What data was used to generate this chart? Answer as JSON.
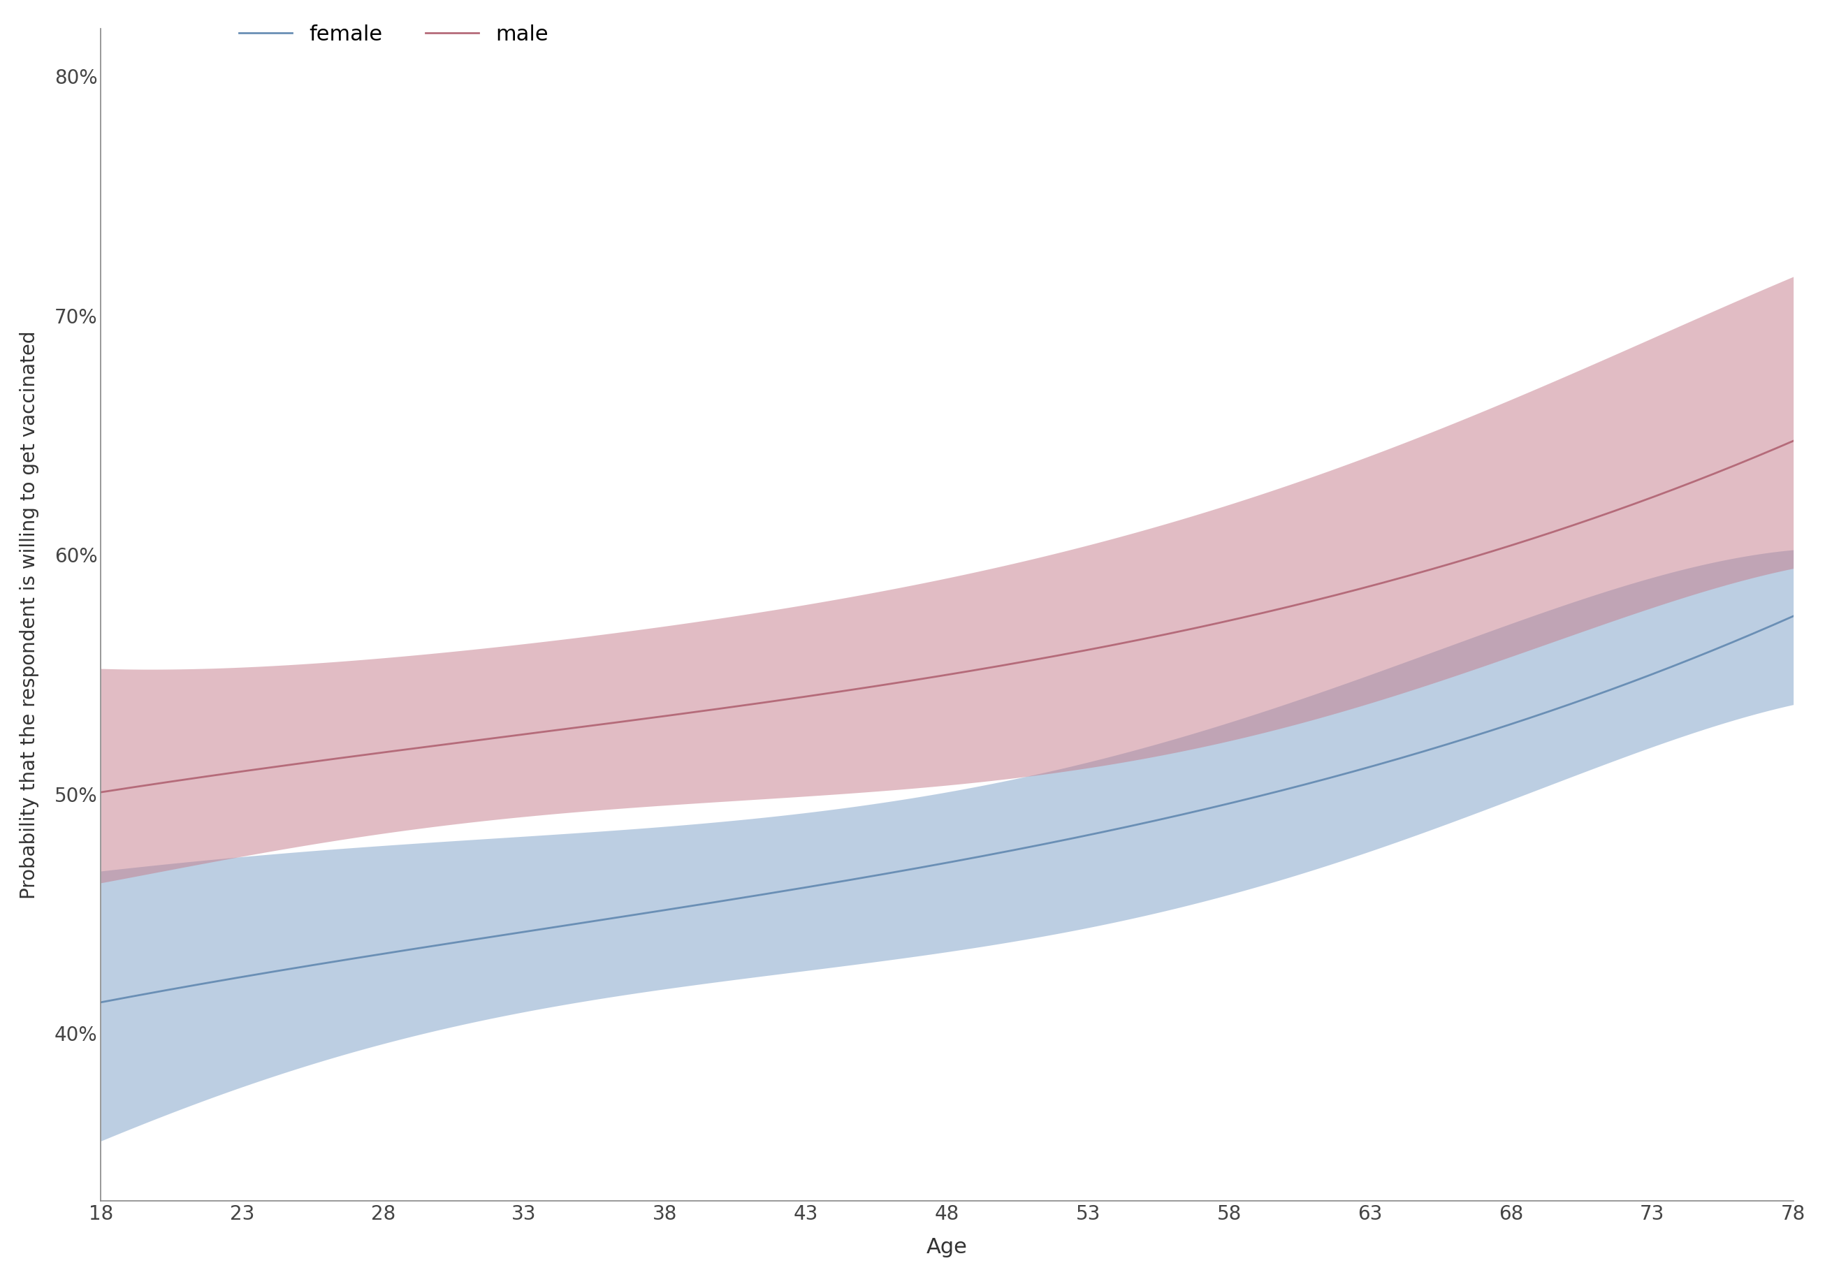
{
  "xlabel": "Age",
  "ylabel": "Probability that the respondent is willing to get vaccinated",
  "x_ticks": [
    18,
    23,
    28,
    33,
    38,
    43,
    48,
    53,
    58,
    63,
    68,
    73,
    78
  ],
  "y_ticks": [
    0.4,
    0.5,
    0.6,
    0.7,
    0.8
  ],
  "xlim": [
    18,
    78
  ],
  "ylim": [
    0.33,
    0.82
  ],
  "legend_labels": [
    "female",
    "male"
  ],
  "female_color": "#7b9fc7",
  "male_color": "#c47b8a",
  "female_line_color": "#6a8fb5",
  "male_line_color": "#b56b7a",
  "background_color": "#ffffff",
  "age_key": [
    18,
    23,
    28,
    33,
    38,
    43,
    48,
    53,
    58,
    63,
    68,
    73,
    78
  ],
  "fem_mean_key": [
    0.41,
    0.425,
    0.435,
    0.445,
    0.455,
    0.46,
    0.465,
    0.478,
    0.495,
    0.515,
    0.535,
    0.552,
    0.57
  ],
  "fem_lo_key": [
    0.355,
    0.378,
    0.395,
    0.408,
    0.42,
    0.428,
    0.432,
    0.443,
    0.458,
    0.478,
    0.498,
    0.518,
    0.538
  ],
  "fem_hi_key": [
    0.468,
    0.474,
    0.477,
    0.482,
    0.49,
    0.492,
    0.498,
    0.513,
    0.53,
    0.552,
    0.572,
    0.588,
    0.603
  ],
  "mal_mean_key": [
    0.498,
    0.51,
    0.52,
    0.528,
    0.535,
    0.54,
    0.545,
    0.555,
    0.57,
    0.59,
    0.61,
    0.628,
    0.642
  ],
  "mal_lo_key": [
    0.463,
    0.474,
    0.483,
    0.49,
    0.497,
    0.5,
    0.502,
    0.51,
    0.522,
    0.54,
    0.558,
    0.576,
    0.595
  ],
  "mal_hi_key": [
    0.554,
    0.549,
    0.558,
    0.565,
    0.572,
    0.578,
    0.588,
    0.602,
    0.622,
    0.645,
    0.666,
    0.686,
    0.718
  ]
}
